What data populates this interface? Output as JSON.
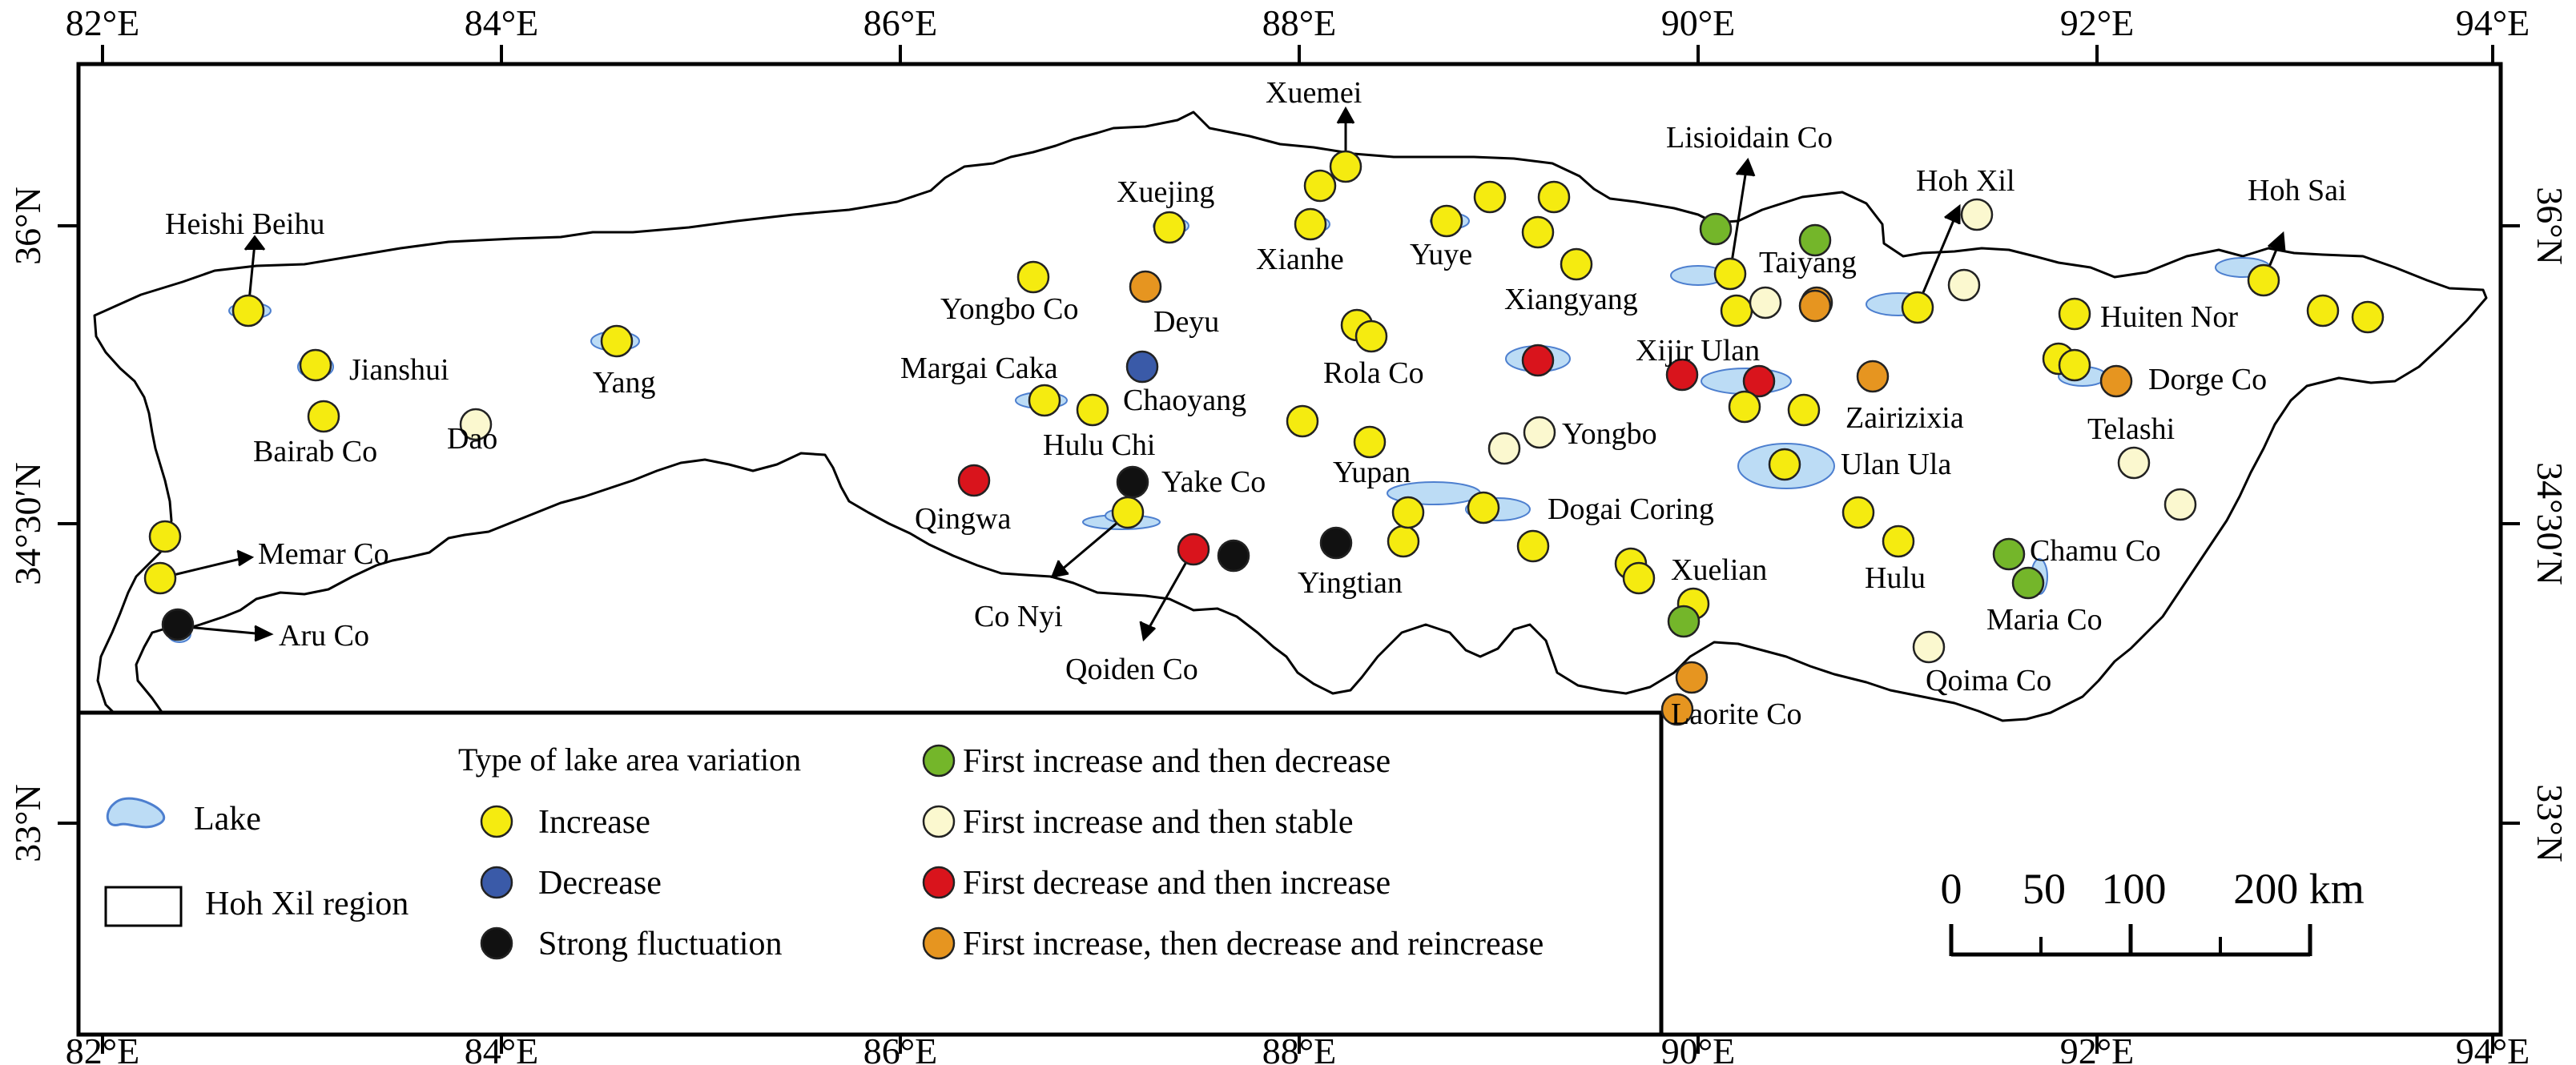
{
  "axes": {
    "lon_labels": [
      "82°E",
      "84°E",
      "86°E",
      "88°E",
      "90°E",
      "92°E",
      "94°E"
    ],
    "lat_labels": [
      "36°N",
      "34°30′N",
      "33°N"
    ]
  },
  "colors": {
    "increase": "#f5eb10",
    "decrease": "#3a5aa8",
    "strong_fluctuation": "#111111",
    "first_increase_then_decrease": "#74b62a",
    "first_increase_then_stable": "#fbf8cf",
    "first_decrease_then_increase": "#d9141c",
    "first_increase_then_decrease_and_reincrease": "#e69520",
    "lake_fill": "#bcdcf5",
    "lake_stroke": "#4d7fcf"
  },
  "lakes": [
    {
      "name": "Heishi Beihu",
      "type": "increase"
    },
    {
      "name": "Jianshui",
      "type": "increase"
    },
    {
      "name": "Bairab Co",
      "type": "increase"
    },
    {
      "name": "Dao",
      "type": "first_increase_then_stable"
    },
    {
      "name": "Yang",
      "type": "increase"
    },
    {
      "name": "Memar Co",
      "type": "increase"
    },
    {
      "name": "Aru Co",
      "type": "strong_fluctuation"
    },
    {
      "name": "Yongbo Co",
      "type": "increase"
    },
    {
      "name": "Deyu",
      "type": "first_increase_then_decrease_and_reincrease"
    },
    {
      "name": "Xuejing",
      "type": "increase"
    },
    {
      "name": "Margai Caka",
      "type": "increase"
    },
    {
      "name": "Chaoyang",
      "type": "decrease"
    },
    {
      "name": "Hulu Chi",
      "type": "increase"
    },
    {
      "name": "Qingwa",
      "type": "first_decrease_then_increase"
    },
    {
      "name": "Yake Co",
      "type": "strong_fluctuation"
    },
    {
      "name": "Co Nyi",
      "type": "increase"
    },
    {
      "name": "Qoiden Co",
      "type": "first_decrease_then_increase"
    },
    {
      "name": "Yingtian",
      "type": "strong_fluctuation"
    },
    {
      "name": "Xuemei",
      "type": "increase"
    },
    {
      "name": "Xianhe",
      "type": "increase"
    },
    {
      "name": "Rola Co",
      "type": "increase"
    },
    {
      "name": "Yupan",
      "type": "increase"
    },
    {
      "name": "Yuye",
      "type": "increase"
    },
    {
      "name": "Xiangyang",
      "type": "increase"
    },
    {
      "name": "Yongbo",
      "type": "first_increase_then_stable"
    },
    {
      "name": "Dogai Coring",
      "type": "increase"
    },
    {
      "name": "Xuelian",
      "type": "increase"
    },
    {
      "name": "Lisioidain Co",
      "type": "increase"
    },
    {
      "name": "Taiyang",
      "type": "first_increase_then_stable"
    },
    {
      "name": "Xijir Ulan",
      "type": "first_decrease_then_increase"
    },
    {
      "name": "Ulan Ula",
      "type": "increase"
    },
    {
      "name": "Zairizixia",
      "type": "first_increase_then_decrease_and_reincrease"
    },
    {
      "name": "Hulu",
      "type": "increase"
    },
    {
      "name": "Laorite Co",
      "type": "first_increase_then_decrease_and_reincrease"
    },
    {
      "name": "Hoh Xil",
      "type": "increase"
    },
    {
      "name": "Qoima Co",
      "type": "first_increase_then_stable"
    },
    {
      "name": "Chamu Co",
      "type": "first_increase_then_decrease"
    },
    {
      "name": "Maria Co",
      "type": "first_increase_then_decrease"
    },
    {
      "name": "Huiten Nor",
      "type": "increase"
    },
    {
      "name": "Dorge Co",
      "type": "first_increase_then_decrease_and_reincrease"
    },
    {
      "name": "Telashi",
      "type": "first_increase_then_stable"
    },
    {
      "name": "Hoh Sai",
      "type": "increase"
    }
  ],
  "legend": {
    "title": "Type of lake area variation",
    "lake": "Lake",
    "region": "Hoh Xil region",
    "increase": "Increase",
    "decrease": "Decrease",
    "strong_fluctuation": "Strong fluctuation",
    "first_increase_then_decrease": "First increase and then decrease",
    "first_increase_then_stable": "First increase and then stable",
    "first_decrease_then_increase": "First decrease and then increase",
    "first_increase_then_decrease_and_reincrease": "First increase, then decrease and reincrease"
  },
  "scale_bar": {
    "labels": [
      "0",
      "50",
      "100",
      "200 km"
    ]
  }
}
